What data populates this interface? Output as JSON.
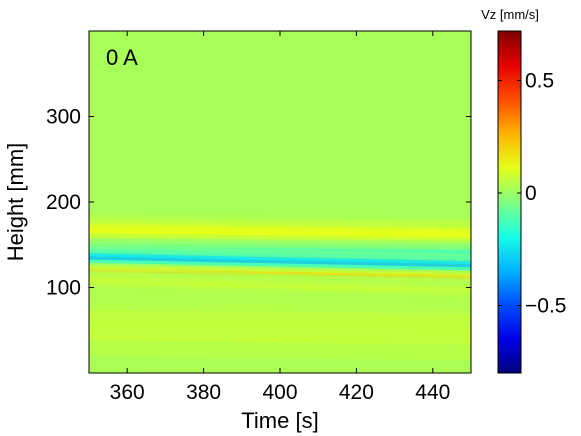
{
  "chart_data": {
    "type": "heatmap",
    "panel_label": "0 A",
    "xlabel": "Time [s]",
    "ylabel": "Height [mm]",
    "xlim": [
      350,
      450
    ],
    "ylim": [
      0,
      400
    ],
    "xticks": [
      360,
      380,
      400,
      420,
      440
    ],
    "yticks": [
      100,
      200,
      300
    ],
    "background_value": 0.02,
    "colorbar": {
      "label": "Vz [mm/s]",
      "range": [
        -0.8,
        0.72
      ],
      "ticks": [
        {
          "value": 0.5,
          "label": "0.5"
        },
        {
          "value": 0,
          "label": "0"
        },
        {
          "value": -0.5,
          "label": "−0.5"
        }
      ],
      "colormap": "jet"
    },
    "features": [
      {
        "height_start": 170,
        "height_end": 165,
        "width": 12,
        "amplitude": 0.13
      },
      {
        "height_start": 144,
        "height_end": 140,
        "width": 10,
        "amplitude": -0.22
      },
      {
        "height_start": 137,
        "height_end": 128,
        "width": 8,
        "amplitude": -0.38
      },
      {
        "height_start": 120,
        "height_end": 112,
        "width": 5,
        "amplitude": 0.26
      },
      {
        "height_start": 110,
        "height_end": 97,
        "width": 9,
        "amplitude": 0.12
      },
      {
        "height_start": 60,
        "height_end": 55,
        "width": 40,
        "amplitude": 0.06
      }
    ]
  }
}
